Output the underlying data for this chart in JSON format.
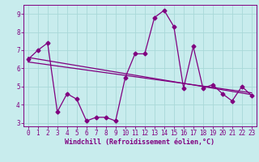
{
  "title": "",
  "xlabel": "Windchill (Refroidissement éolien,°C)",
  "background_color": "#c8eced",
  "line_color": "#800080",
  "spine_color": "#800080",
  "xlim": [
    -0.5,
    23.5
  ],
  "ylim": [
    2.8,
    9.5
  ],
  "yticks": [
    3,
    4,
    5,
    6,
    7,
    8,
    9
  ],
  "xticks": [
    0,
    1,
    2,
    3,
    4,
    5,
    6,
    7,
    8,
    9,
    10,
    11,
    12,
    13,
    14,
    15,
    16,
    17,
    18,
    19,
    20,
    21,
    22,
    23
  ],
  "grid_color": "#a8d8d8",
  "series1_x": [
    0,
    1,
    2,
    3,
    4,
    5,
    6,
    7,
    8,
    9,
    10,
    11,
    12,
    13,
    14,
    15,
    16,
    17,
    18,
    19,
    20,
    21,
    22,
    23
  ],
  "series1_y": [
    6.5,
    7.0,
    7.4,
    3.6,
    4.6,
    4.3,
    3.1,
    3.3,
    3.3,
    3.1,
    5.5,
    6.8,
    6.8,
    8.8,
    9.2,
    8.3,
    4.9,
    7.2,
    4.9,
    5.1,
    4.6,
    4.2,
    5.0,
    4.5
  ],
  "trend1_x": [
    0,
    23
  ],
  "trend1_y": [
    6.6,
    4.55
  ],
  "trend2_x": [
    0,
    23
  ],
  "trend2_y": [
    6.35,
    4.65
  ],
  "marker": "D",
  "marker_size": 2.5,
  "linewidth": 0.9,
  "tick_fontsize": 5.5,
  "xlabel_fontsize": 6.0,
  "xlabel_fontweight": "bold"
}
